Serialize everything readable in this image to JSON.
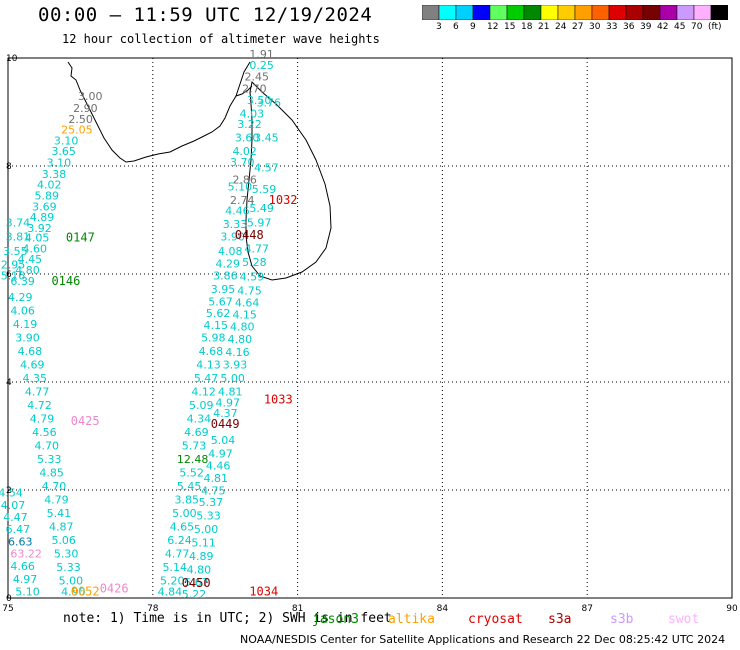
{
  "title": "00:00 – 11:59 UTC 12/19/2024",
  "subtitle": "12 hour collection of altimeter wave heights",
  "legend": {
    "colors": [
      "#808080",
      "#00ffff",
      "#00d0ff",
      "#0000ff",
      "#60ff60",
      "#00cc00",
      "#008800",
      "#ffff00",
      "#ffcc00",
      "#ffa000",
      "#ff6000",
      "#dd0000",
      "#aa0000",
      "#770000",
      "#aa00aa",
      "#cc99ff",
      "#ffb0ff",
      "#000000"
    ],
    "labels": [
      "3",
      "6",
      "9",
      "12",
      "15",
      "18",
      "21",
      "24",
      "27",
      "30",
      "33",
      "36",
      "39",
      "42",
      "45",
      "70",
      "(ft)"
    ]
  },
  "axes": {
    "x_ticks": [
      "75",
      "78",
      "81",
      "84",
      "87",
      "90"
    ],
    "y_ticks": [
      "0",
      "2",
      "4",
      "6",
      "8",
      "10"
    ]
  },
  "note": "note: 1) Time is in UTC; 2) SWH is in feet",
  "satellites": [
    {
      "name": "jason3",
      "color": "#008800"
    },
    {
      "name": "altika",
      "color": "#ffa000"
    },
    {
      "name": "cryosat",
      "color": "#dd0000"
    },
    {
      "name": "s3a",
      "color": "#aa0000"
    },
    {
      "name": "s3b",
      "color": "#cc99ff"
    },
    {
      "name": "swot",
      "color": "#ffb0ff"
    }
  ],
  "credit": "NOAA/NESDIS Center for Satellite Applications and Research    22 Dec 08:25:42 UTC 2024",
  "track_colors": {
    "cyan": "#00cccc",
    "gray": "#707070",
    "orange": "#ffa000",
    "pink": "#ee88cc",
    "green": "#008800",
    "red": "#dd0000",
    "maroon": "#770000",
    "blue": "#0077aa"
  },
  "time_labels": [
    {
      "text": "0147",
      "lon": 76.2,
      "lat": 6.6,
      "color": "green"
    },
    {
      "text": "0146",
      "lon": 75.9,
      "lat": 5.8,
      "color": "green"
    },
    {
      "text": "0425",
      "lon": 76.3,
      "lat": 3.2,
      "color": "pink"
    },
    {
      "text": "0426",
      "lon": 76.9,
      "lat": 0.1,
      "color": "pink"
    },
    {
      "text": "0052",
      "lon": 76.3,
      "lat": 0.05,
      "color": "orange"
    },
    {
      "text": "0449",
      "lon": 79.2,
      "lat": 3.15,
      "color": "maroon"
    },
    {
      "text": "0448",
      "lon": 79.7,
      "lat": 6.65,
      "color": "maroon"
    },
    {
      "text": "0450",
      "lon": 78.6,
      "lat": 0.2,
      "color": "maroon"
    },
    {
      "text": "1032",
      "lon": 80.4,
      "lat": 7.3,
      "color": "red"
    },
    {
      "text": "1033",
      "lon": 80.3,
      "lat": 3.6,
      "color": "red"
    },
    {
      "text": "1034",
      "lon": 80.0,
      "lat": 0.05,
      "color": "red"
    }
  ],
  "tracks": [
    {
      "color": "gray",
      "points": [
        [
          76.45,
          9.22,
          "3.00"
        ],
        [
          76.35,
          9.0,
          "2.90"
        ],
        [
          76.25,
          8.8,
          "2.50"
        ]
      ]
    },
    {
      "color": "orange",
      "points": [
        [
          76.1,
          8.6,
          "25.05"
        ]
      ]
    },
    {
      "color": "cyan",
      "points": [
        [
          75.95,
          8.4,
          "3.10"
        ],
        [
          75.9,
          8.2,
          "3.65"
        ],
        [
          75.8,
          7.99,
          "3.10"
        ],
        [
          75.7,
          7.78,
          "3.38"
        ],
        [
          75.6,
          7.58,
          "4.02"
        ],
        [
          75.55,
          7.38,
          "5.89"
        ],
        [
          75.5,
          7.18,
          "3.69"
        ],
        [
          75.45,
          6.98,
          "4.89"
        ],
        [
          75.4,
          6.78,
          "3.92"
        ],
        [
          75.35,
          6.6,
          "4.05"
        ],
        [
          75.3,
          6.4,
          "4.60"
        ],
        [
          75.2,
          6.2,
          "4.45"
        ],
        [
          75.15,
          6.0,
          "4.80"
        ],
        [
          75.05,
          5.8,
          "6.39"
        ]
      ]
    },
    {
      "color": "cyan",
      "points": [
        [
          74.95,
          6.88,
          "3.74"
        ],
        [
          74.95,
          6.62,
          "3.81"
        ],
        [
          74.9,
          6.35,
          "3.55"
        ],
        [
          74.85,
          6.1,
          "2.95"
        ],
        [
          74.85,
          5.9,
          "5.16"
        ],
        [
          75.0,
          5.5,
          "4.29"
        ],
        [
          75.05,
          5.25,
          "4.06"
        ],
        [
          75.1,
          5.0,
          "4.19"
        ],
        [
          75.15,
          4.75,
          "3.90"
        ],
        [
          75.2,
          4.5,
          "4.68"
        ],
        [
          75.25,
          4.25,
          "4.69"
        ],
        [
          75.3,
          4.0,
          "4.35"
        ],
        [
          75.35,
          3.75,
          "4.77"
        ],
        [
          75.4,
          3.5,
          "4.72"
        ],
        [
          75.45,
          3.25,
          "4.79"
        ],
        [
          75.5,
          3.0,
          "4.56"
        ],
        [
          75.55,
          2.75,
          "4.70"
        ],
        [
          75.6,
          2.5,
          "5.33"
        ],
        [
          75.65,
          2.25,
          "4.85"
        ],
        [
          75.7,
          2.0,
          "4.70"
        ],
        [
          75.75,
          1.75,
          "4.79"
        ],
        [
          75.8,
          1.5,
          "5.41"
        ],
        [
          75.85,
          1.25,
          "4.87"
        ],
        [
          75.9,
          1.0,
          "5.06"
        ],
        [
          75.95,
          0.75,
          "5.30"
        ],
        [
          76.0,
          0.5,
          "5.33"
        ],
        [
          76.05,
          0.25,
          "5.00"
        ],
        [
          76.1,
          0.05,
          "4.90"
        ]
      ]
    },
    {
      "color": "cyan",
      "points": [
        [
          74.8,
          1.88,
          "4.54"
        ],
        [
          74.85,
          1.65,
          "4.07"
        ],
        [
          74.9,
          1.43,
          "4.47"
        ],
        [
          74.95,
          1.2,
          "6.47"
        ],
        [
          75.05,
          0.52,
          "4.66"
        ],
        [
          75.1,
          0.28,
          "4.97"
        ],
        [
          75.15,
          0.05,
          "5.10"
        ]
      ]
    },
    {
      "color": "blue",
      "points": [
        [
          75.0,
          0.97,
          "6.63"
        ]
      ]
    },
    {
      "color": "pink",
      "points": [
        [
          75.05,
          0.75,
          "63.22"
        ]
      ]
    },
    {
      "color": "gray",
      "points": [
        [
          80.0,
          10.0,
          "1.91"
        ],
        [
          79.9,
          9.58,
          "2.45"
        ],
        [
          79.85,
          9.36,
          "2.70"
        ],
        [
          79.65,
          7.68,
          "2.86"
        ],
        [
          79.6,
          7.3,
          "2.74"
        ]
      ]
    },
    {
      "color": "cyan",
      "points": [
        [
          80.0,
          9.8,
          "0.25"
        ],
        [
          79.95,
          9.15,
          "3.50"
        ],
        [
          79.8,
          8.9,
          "4.03"
        ],
        [
          79.75,
          8.7,
          "3.22"
        ],
        [
          79.7,
          8.45,
          "3.60"
        ],
        [
          79.65,
          8.2,
          "4.02"
        ],
        [
          79.6,
          8.0,
          "3.70"
        ],
        [
          79.55,
          7.55,
          "5.10"
        ],
        [
          79.5,
          7.1,
          "4.46"
        ],
        [
          79.45,
          6.85,
          "3.33"
        ],
        [
          79.4,
          6.62,
          "3.90"
        ],
        [
          79.35,
          6.35,
          "4.08"
        ],
        [
          79.3,
          6.12,
          "4.29"
        ],
        [
          79.25,
          5.9,
          "3.86"
        ],
        [
          79.2,
          5.65,
          "3.95"
        ],
        [
          79.15,
          5.42,
          "5.67"
        ],
        [
          79.1,
          5.2,
          "5.62"
        ],
        [
          79.05,
          4.98,
          "4.15"
        ],
        [
          79.0,
          4.75,
          "5.98"
        ],
        [
          78.95,
          4.5,
          "4.68"
        ],
        [
          78.9,
          4.25,
          "4.13"
        ],
        [
          78.85,
          4.0,
          "5.47"
        ],
        [
          78.8,
          3.75,
          "4.12"
        ],
        [
          78.75,
          3.5,
          "5.09"
        ],
        [
          78.7,
          3.25,
          "4.34"
        ],
        [
          78.65,
          3.0,
          "4.69"
        ],
        [
          78.6,
          2.75,
          "5.73"
        ],
        [
          78.55,
          2.25,
          "5.52"
        ],
        [
          78.5,
          2.0,
          "5.45"
        ],
        [
          78.45,
          1.75,
          "3.85"
        ],
        [
          78.4,
          1.5,
          "5.00"
        ],
        [
          78.35,
          1.25,
          "4.65"
        ],
        [
          78.3,
          1.0,
          "6.24"
        ],
        [
          78.25,
          0.75,
          "4.77"
        ],
        [
          78.2,
          0.5,
          "5.14"
        ],
        [
          78.15,
          0.25,
          "5.20"
        ],
        [
          78.1,
          0.05,
          "4.84"
        ]
      ]
    },
    {
      "color": "green",
      "points": [
        [
          78.5,
          2.5,
          "12.48"
        ]
      ]
    },
    {
      "color": "cyan",
      "points": [
        [
          80.15,
          9.1,
          "3.76"
        ],
        [
          80.1,
          8.45,
          "3.45"
        ],
        [
          80.1,
          7.9,
          "4.57"
        ],
        [
          80.05,
          7.5,
          "5.59"
        ],
        [
          80.0,
          7.15,
          "5.49"
        ],
        [
          79.95,
          6.88,
          "5.97"
        ],
        [
          79.9,
          6.4,
          "4.77"
        ],
        [
          79.85,
          6.15,
          "5.28"
        ],
        [
          79.8,
          5.88,
          "4.59"
        ],
        [
          79.75,
          5.62,
          "4.75"
        ],
        [
          79.7,
          5.4,
          "4.64"
        ],
        [
          79.65,
          5.18,
          "4.15"
        ],
        [
          79.6,
          4.95,
          "4.80"
        ],
        [
          79.55,
          4.72,
          "4.80"
        ],
        [
          79.5,
          4.48,
          "4.16"
        ],
        [
          79.45,
          4.25,
          "3.93"
        ],
        [
          79.4,
          4.0,
          "5.00"
        ],
        [
          79.35,
          3.75,
          "4.81"
        ],
        [
          79.3,
          3.55,
          "4.97"
        ],
        [
          79.25,
          3.35,
          "4.37"
        ],
        [
          79.2,
          2.85,
          "5.04"
        ],
        [
          79.15,
          2.6,
          "4.97"
        ],
        [
          79.1,
          2.38,
          "4.46"
        ],
        [
          79.05,
          2.15,
          "4.81"
        ],
        [
          79.0,
          1.92,
          "4.75"
        ],
        [
          78.95,
          1.7,
          "5.37"
        ],
        [
          78.9,
          1.45,
          "5.33"
        ],
        [
          78.85,
          1.2,
          "5.00"
        ],
        [
          78.8,
          0.95,
          "5.11"
        ],
        [
          78.75,
          0.7,
          "4.89"
        ],
        [
          78.7,
          0.45,
          "4.80"
        ],
        [
          78.65,
          0.22,
          "5.67"
        ],
        [
          78.6,
          0.0,
          "5.22"
        ]
      ]
    }
  ]
}
